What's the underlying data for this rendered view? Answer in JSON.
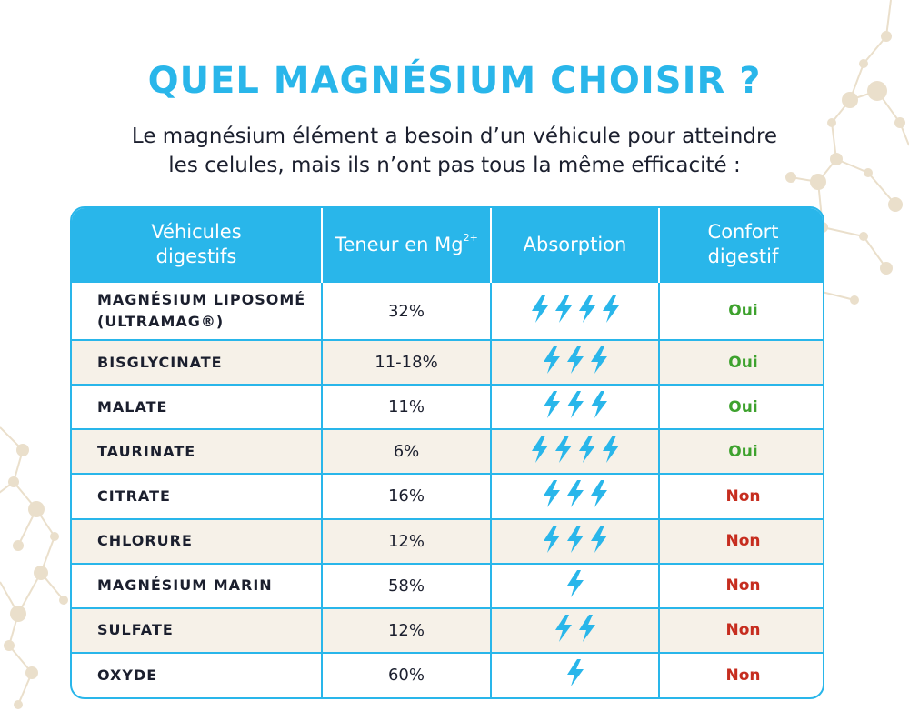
{
  "colors": {
    "accent": "#29b6ea",
    "row_alt": "#f6f1e8",
    "yes": "#3ea22e",
    "no": "#c62d1f",
    "decor": "#e8dcc6"
  },
  "title": "QUEL MAGNÉSIUM CHOISIR ?",
  "subtitle": {
    "line1": "Le magnésium élément a besoin d’un véhicule pour atteindre",
    "line2": "les celules, mais ils n’ont pas tous la même efficacité :"
  },
  "table": {
    "headers": {
      "col1_line1": "Véhicules",
      "col1_line2": "digestifs",
      "col2": "Teneur en Mg",
      "col2_sup": "2+",
      "col3": "Absorption",
      "col4_line1": "Confort",
      "col4_line2": "digestif"
    },
    "rows": [
      {
        "name": "MAGNÉSIUM LIPOSOMÉ",
        "name2": "(ULTRAMAG®)",
        "content": "32%",
        "absorption": 4,
        "comfort": "Oui",
        "ok": true
      },
      {
        "name": "BISGLYCINATE",
        "name2": "",
        "content": "11-18%",
        "absorption": 3,
        "comfort": "Oui",
        "ok": true
      },
      {
        "name": "MALATE",
        "name2": "",
        "content": "11%",
        "absorption": 3,
        "comfort": "Oui",
        "ok": true
      },
      {
        "name": "TAURINATE",
        "name2": "",
        "content": "6%",
        "absorption": 4,
        "comfort": "Oui",
        "ok": true
      },
      {
        "name": "CITRATE",
        "name2": "",
        "content": "16%",
        "absorption": 3,
        "comfort": "Non",
        "ok": false
      },
      {
        "name": "CHLORURE",
        "name2": "",
        "content": "12%",
        "absorption": 3,
        "comfort": "Non",
        "ok": false
      },
      {
        "name": "MAGNÉSIUM MARIN",
        "name2": "",
        "content": "58%",
        "absorption": 1,
        "comfort": "Non",
        "ok": false
      },
      {
        "name": "SULFATE",
        "name2": "",
        "content": "12%",
        "absorption": 2,
        "comfort": "Non",
        "ok": false
      },
      {
        "name": "OXYDE",
        "name2": "",
        "content": "60%",
        "absorption": 1,
        "comfort": "Non",
        "ok": false
      }
    ]
  }
}
